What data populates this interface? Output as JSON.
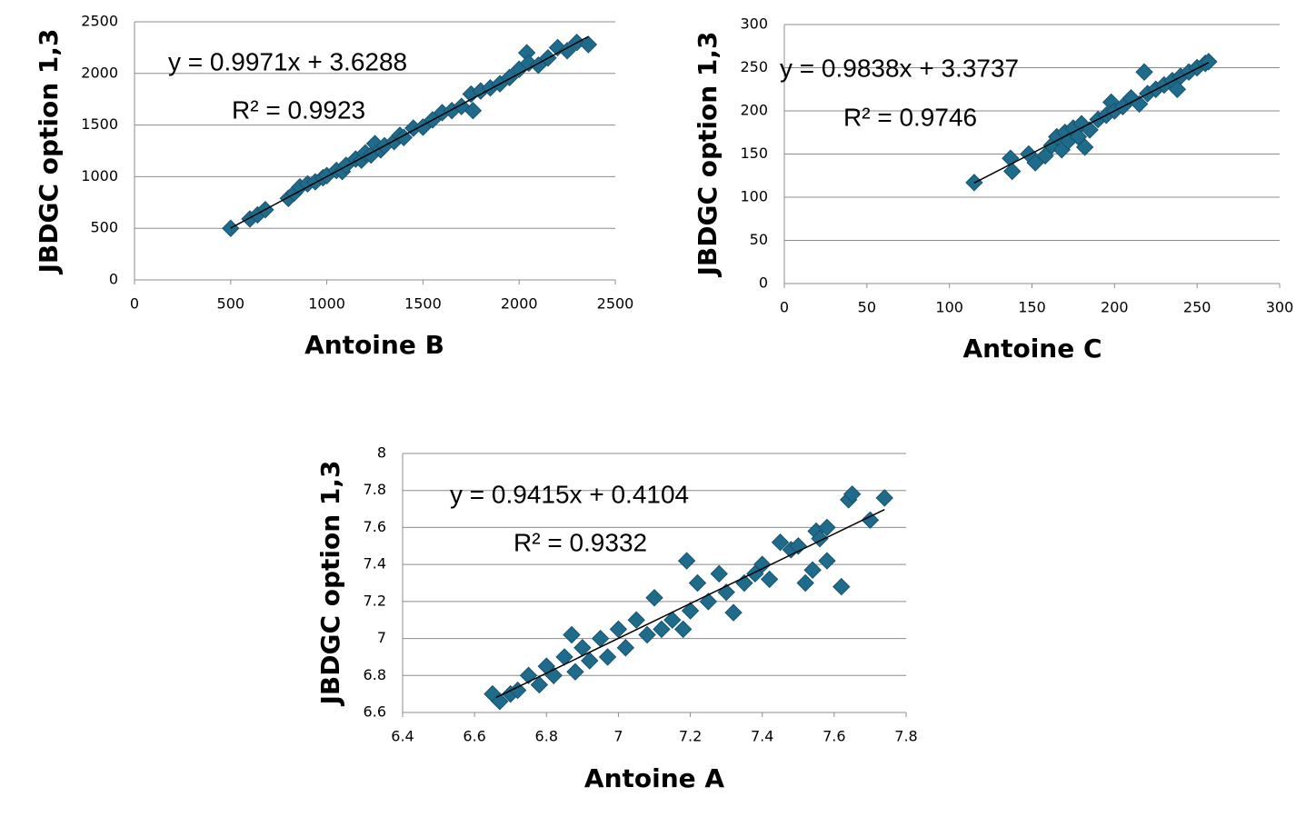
{
  "chart_data": [
    {
      "type": "scatter",
      "x_label": "Antoine B",
      "y_label": "JBDGC option 1,3",
      "equation": "y = 0.9971x + 3.6288",
      "r_squared": "R² = 0.9923",
      "xlim": [
        0,
        2500
      ],
      "ylim": [
        0,
        2500
      ],
      "xticks": [
        0,
        500,
        1000,
        1500,
        2000,
        2500
      ],
      "yticks": [
        0,
        500,
        1000,
        1500,
        2000,
        2500
      ],
      "grid": true,
      "series": [
        {
          "color": "#1f6b8c",
          "x": [
            500,
            600,
            640,
            680,
            800,
            830,
            860,
            900,
            940,
            980,
            1000,
            1050,
            1080,
            1100,
            1150,
            1180,
            1200,
            1230,
            1250,
            1280,
            1300,
            1350,
            1380,
            1400,
            1450,
            1500,
            1550,
            1600,
            1650,
            1700,
            1750,
            1760,
            1800,
            1850,
            1900,
            1950,
            2000,
            2040,
            2050,
            2100,
            2150,
            2200,
            2250,
            2300,
            2360
          ],
          "values": [
            500,
            590,
            630,
            680,
            790,
            840,
            900,
            930,
            950,
            990,
            1010,
            1060,
            1050,
            1110,
            1170,
            1160,
            1230,
            1210,
            1320,
            1260,
            1300,
            1340,
            1400,
            1380,
            1470,
            1480,
            1550,
            1620,
            1640,
            1680,
            1800,
            1640,
            1830,
            1860,
            1900,
            1960,
            2040,
            2200,
            2100,
            2080,
            2150,
            2250,
            2220,
            2300,
            2280
          ]
        }
      ],
      "trendline": {
        "color": "#000000",
        "x": [
          500,
          2360
        ],
        "values": [
          502,
          2357
        ]
      }
    },
    {
      "type": "scatter",
      "x_label": "Antoine C",
      "y_label": "JBDGC option 1,3",
      "equation": "y = 0.9838x + 3.3737",
      "r_squared": "R² = 0.9746",
      "xlim": [
        0,
        300
      ],
      "ylim": [
        0,
        300
      ],
      "xticks": [
        0,
        50,
        100,
        150,
        200,
        250,
        300
      ],
      "yticks": [
        0,
        50,
        100,
        150,
        200,
        250,
        300
      ],
      "grid": true,
      "series": [
        {
          "color": "#1f6b8c",
          "x": [
            115,
            137,
            138,
            148,
            152,
            158,
            162,
            165,
            168,
            170,
            172,
            175,
            178,
            180,
            182,
            185,
            190,
            195,
            198,
            200,
            205,
            210,
            215,
            218,
            220,
            225,
            230,
            235,
            238,
            240,
            245,
            250,
            255,
            257
          ],
          "values": [
            117,
            145,
            130,
            150,
            140,
            148,
            160,
            170,
            155,
            175,
            165,
            180,
            170,
            185,
            158,
            178,
            190,
            195,
            210,
            200,
            205,
            215,
            208,
            245,
            220,
            225,
            230,
            235,
            225,
            240,
            245,
            250,
            255,
            257
          ]
        }
      ],
      "trendline": {
        "color": "#000000",
        "x": [
          115,
          257
        ],
        "values": [
          116.5,
          256
        ]
      }
    },
    {
      "type": "scatter",
      "x_label": "Antoine A",
      "y_label": "JBDGC option 1,3",
      "equation": "y = 0.9415x + 0.4104",
      "r_squared": "R² = 0.9332",
      "xlim": [
        6.4,
        7.8
      ],
      "ylim": [
        6.6,
        8
      ],
      "xticks": [
        6.4,
        6.6,
        6.8,
        7,
        7.2,
        7.4,
        7.6,
        7.8
      ],
      "yticks": [
        6.6,
        6.8,
        7,
        7.2,
        7.4,
        7.6,
        7.8,
        8
      ],
      "grid": true,
      "series": [
        {
          "color": "#1f6b8c",
          "x": [
            6.65,
            6.67,
            6.7,
            6.72,
            6.75,
            6.78,
            6.8,
            6.82,
            6.85,
            6.87,
            6.88,
            6.9,
            6.92,
            6.95,
            6.97,
            7,
            7.02,
            7.05,
            7.08,
            7.1,
            7.12,
            7.15,
            7.18,
            7.19,
            7.2,
            7.22,
            7.25,
            7.28,
            7.3,
            7.32,
            7.35,
            7.38,
            7.4,
            7.42,
            7.45,
            7.48,
            7.5,
            7.52,
            7.54,
            7.55,
            7.56,
            7.58,
            7.58,
            7.62,
            7.64,
            7.65,
            7.7,
            7.74
          ],
          "values": [
            6.7,
            6.66,
            6.7,
            6.72,
            6.8,
            6.75,
            6.85,
            6.8,
            6.9,
            7.02,
            6.82,
            6.95,
            6.88,
            7.0,
            6.9,
            7.05,
            6.95,
            7.1,
            7.02,
            7.22,
            7.05,
            7.1,
            7.05,
            7.42,
            7.15,
            7.3,
            7.2,
            7.35,
            7.25,
            7.14,
            7.3,
            7.35,
            7.4,
            7.32,
            7.52,
            7.48,
            7.5,
            7.3,
            7.37,
            7.58,
            7.54,
            7.6,
            7.42,
            7.28,
            7.75,
            7.78,
            7.64,
            7.76
          ]
        }
      ],
      "trendline": {
        "color": "#000000",
        "x": [
          6.66,
          7.74
        ],
        "values": [
          6.681,
          7.697
        ]
      }
    }
  ]
}
